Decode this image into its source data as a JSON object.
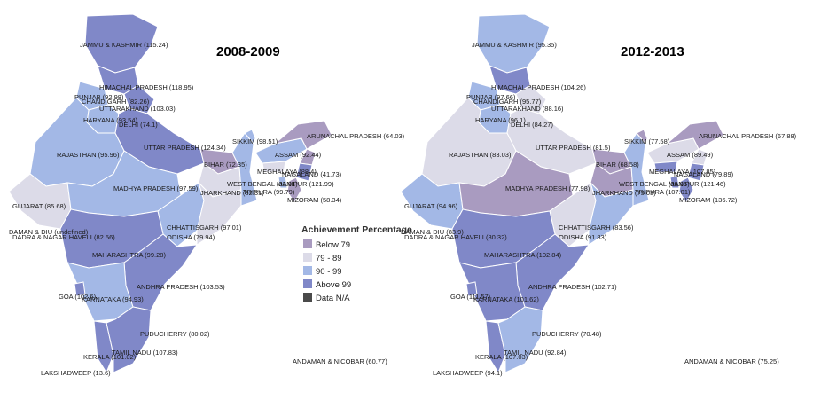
{
  "colors": {
    "below79": "#a99bc0",
    "r79_89": "#dcdbe8",
    "r90_99": "#a3b8e6",
    "above99": "#8088c8",
    "na": "#4a4a4a",
    "outline": "#ffffff"
  },
  "legend": {
    "title": "Achievement Percentage",
    "items": [
      {
        "label": "Below 79",
        "color": "#a99bc0"
      },
      {
        "label": "79 - 89",
        "color": "#dcdbe8"
      },
      {
        "label": "90 - 99",
        "color": "#a3b8e6"
      },
      {
        "label": "Above 99",
        "color": "#8088c8"
      },
      {
        "label": "Data N/A",
        "color": "#4a4a4a"
      }
    ]
  },
  "maps": [
    {
      "year": "2008-2009",
      "labels": [
        "JAMMU & KASHMIR (115.24)",
        "HIMACHAL PRADESH (118.95)",
        "PUNJAB (92.98)",
        "CHANDIGARH (82.26)",
        "UTTARAKHAND (103.03)",
        "HARYANA (93.54)",
        "DELHI (74.1)",
        "RAJASTHAN (95.96)",
        "UTTAR PRADESH (124.34)",
        "SIKKIM (98.51)",
        "ARUNACHAL PRADESH (64.03)",
        "ASSAM (92.44)",
        "BIHAR (72.35)",
        "MEGHALAYA (88.4)",
        "NAGALAND (41.73)",
        "MANIPUR (121.99)",
        "WEST BENGAL (93.01)",
        "JHARKHAND (82.31)",
        "TRIPURA (99.79)",
        "MIZORAM (58.34)",
        "MADHYA PRADESH (97.59)",
        "GUJARAT (85.68)",
        "CHHATTISGARH (97.01)",
        "DAMAN & DIU (undefined)",
        "DADRA & NAGAR HAVELI (82.56)",
        "ODISHA (79.94)",
        "MAHARASHTRA (99.28)",
        "ANDHRA PRADESH (103.53)",
        "GOA (102.6)",
        "KARNATAKA (94.93)",
        "PUDUCHERRY (80.02)",
        "TAMIL NADU (107.83)",
        "KERALA (101.02)",
        "LAKSHADWEEP (13.6)",
        "ANDAMAN & NICOBAR (60.77)"
      ]
    },
    {
      "year": "2012-2013",
      "labels": [
        "JAMMU & KASHMIR (95.35)",
        "HIMACHAL PRADESH (104.26)",
        "PUNJAB (97.66)",
        "CHANDIGARH (95.77)",
        "UTTARAKHAND (88.16)",
        "HARYANA (96.1)",
        "DELHI (84.27)",
        "RAJASTHAN (83.03)",
        "UTTAR PRADESH (81.5)",
        "SIKKIM (77.58)",
        "ARUNACHAL PRADESH (67.88)",
        "ASSAM (89.49)",
        "BIHAR (68.58)",
        "MEGHALAYA (107.85)",
        "NAGALAND (79.89)",
        "MANIPUR (121.46)",
        "WEST BENGAL (99.85)",
        "JHARKHAND (75.03)",
        "TRIPURA (107.01)",
        "MIZORAM (136.72)",
        "MADHYA PRADESH (77.98)",
        "GUJARAT (94.96)",
        "CHHATTISGARH (83.56)",
        "DAMAN & DIU (83.9)",
        "DADRA & NAGAR HAVELI (80.32)",
        "ODISHA (91.83)",
        "MAHARASHTRA (102.84)",
        "ANDHRA PRADESH (102.71)",
        "GOA (111.57)",
        "KARNATAKA (101.62)",
        "PUDUCHERRY (70.48)",
        "TAMIL NADU (92.84)",
        "KERALA (107.03)",
        "LAKSHADWEEP (94.1)",
        "ANDAMAN & NICOBAR (75.25)"
      ]
    }
  ]
}
